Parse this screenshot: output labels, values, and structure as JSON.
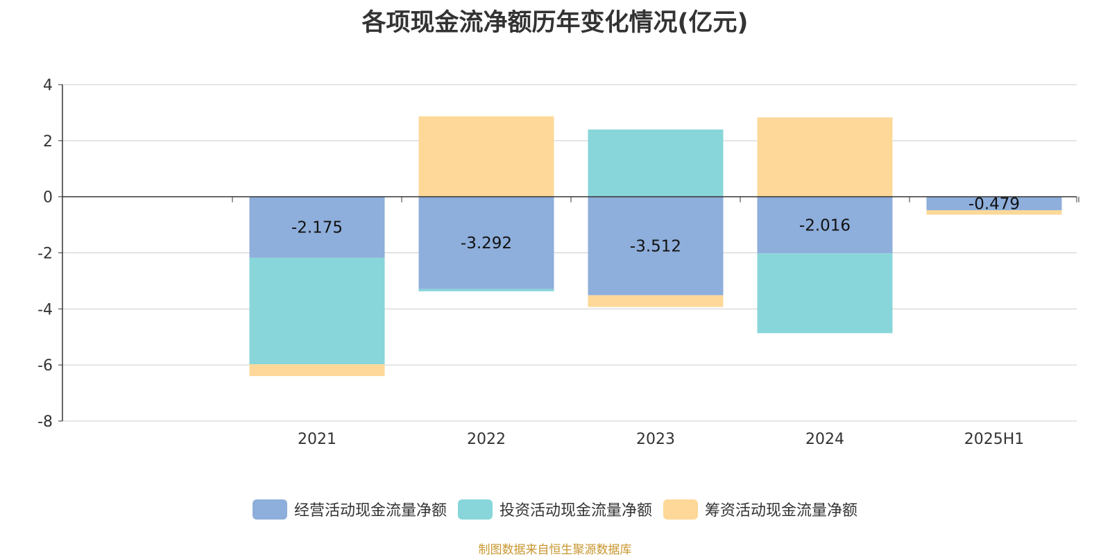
{
  "chart_data": {
    "type": "bar",
    "stacked": true,
    "title": "各项现金流净额历年变化情况(亿元)",
    "categories": [
      "2021",
      "2022",
      "2023",
      "2024",
      "2025H1"
    ],
    "ylim": [
      -8,
      4
    ],
    "yticks": [
      "4",
      "2",
      "0",
      "-2",
      "-4",
      "-6",
      "-8"
    ],
    "grid": true,
    "legend_position": "bottom",
    "series": [
      {
        "name": "经营活动现金流量净额",
        "color": "#8eaedb",
        "values": [
          -2.175,
          -3.292,
          -3.512,
          -2.016,
          -0.479
        ],
        "labels": [
          "-2.175",
          "-3.292",
          "-3.512",
          "-2.016",
          "-0.479"
        ]
      },
      {
        "name": "投资活动现金流量净额",
        "color": "#88d6d9",
        "values": [
          -3.8,
          -0.08,
          2.4,
          -2.85,
          0
        ]
      },
      {
        "name": "筹资活动现金流量净额",
        "color": "#fdd898",
        "values": [
          -0.42,
          2.87,
          -0.42,
          2.83,
          -0.16
        ]
      }
    ]
  },
  "footer": "制图数据来自恒生聚源数据库"
}
